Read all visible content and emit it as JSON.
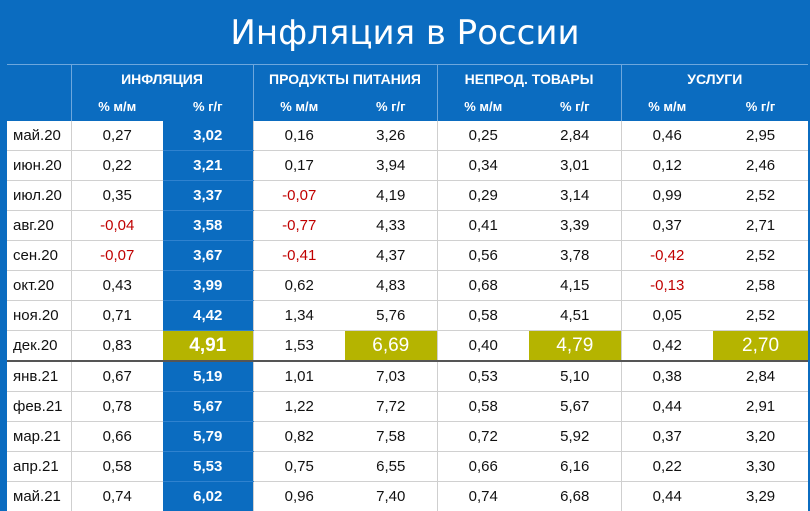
{
  "title": "Инфляция в России",
  "groups": [
    "ИНФЛЯЦИЯ",
    "ПРОДУКТЫ ПИТАНИЯ",
    "НЕПРОД. ТОВАРЫ",
    "УСЛУГИ"
  ],
  "subheaders": [
    "% м/м",
    "% г/г",
    "% м/м",
    "% г/г",
    "% м/м",
    "% г/г",
    "% м/м",
    "% г/г"
  ],
  "rows": [
    {
      "label": "май.20",
      "values": [
        "0,27",
        "3,02",
        "0,16",
        "3,26",
        "0,25",
        "2,84",
        "0,46",
        "2,95"
      ]
    },
    {
      "label": "июн.20",
      "values": [
        "0,22",
        "3,21",
        "0,17",
        "3,94",
        "0,34",
        "3,01",
        "0,12",
        "2,46"
      ]
    },
    {
      "label": "июл.20",
      "values": [
        "0,35",
        "3,37",
        "-0,07",
        "4,19",
        "0,29",
        "3,14",
        "0,99",
        "2,52"
      ]
    },
    {
      "label": "авг.20",
      "values": [
        "-0,04",
        "3,58",
        "-0,77",
        "4,33",
        "0,41",
        "3,39",
        "0,37",
        "2,71"
      ]
    },
    {
      "label": "сен.20",
      "values": [
        "-0,07",
        "3,67",
        "-0,41",
        "4,37",
        "0,56",
        "3,78",
        "-0,42",
        "2,52"
      ]
    },
    {
      "label": "окт.20",
      "values": [
        "0,43",
        "3,99",
        "0,62",
        "4,83",
        "0,68",
        "4,15",
        "-0,13",
        "2,58"
      ]
    },
    {
      "label": "ноя.20",
      "values": [
        "0,71",
        "4,42",
        "1,34",
        "5,76",
        "0,58",
        "4,51",
        "0,05",
        "2,52"
      ]
    },
    {
      "label": "дек.20",
      "values": [
        "0,83",
        "4,91",
        "1,53",
        "6,69",
        "0,40",
        "4,79",
        "0,42",
        "2,70"
      ]
    },
    {
      "label": "янв.21",
      "values": [
        "0,67",
        "5,19",
        "1,01",
        "7,03",
        "0,53",
        "5,10",
        "0,38",
        "2,84"
      ]
    },
    {
      "label": "фев.21",
      "values": [
        "0,78",
        "5,67",
        "1,22",
        "7,72",
        "0,58",
        "5,67",
        "0,44",
        "2,91"
      ]
    },
    {
      "label": "мар.21",
      "values": [
        "0,66",
        "5,79",
        "0,82",
        "7,58",
        "0,72",
        "5,92",
        "0,37",
        "3,20"
      ]
    },
    {
      "label": "апр.21",
      "values": [
        "0,58",
        "5,53",
        "0,75",
        "6,55",
        "0,66",
        "6,16",
        "0,22",
        "3,30"
      ]
    },
    {
      "label": "май.21",
      "values": [
        "0,74",
        "6,02",
        "0,96",
        "7,40",
        "0,74",
        "6,68",
        "0,44",
        "3,29"
      ]
    }
  ],
  "colors": {
    "background": "#0b6cc0",
    "highlight": "#b5b400",
    "negative": "#c00000"
  }
}
